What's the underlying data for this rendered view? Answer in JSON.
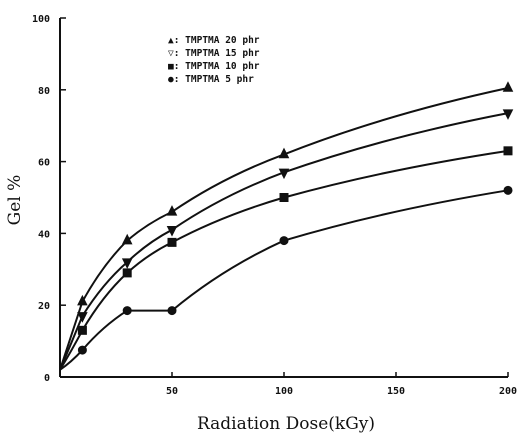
{
  "chart_data": {
    "type": "scatter",
    "title": "",
    "xlabel": "Radiation Dose(kGy)",
    "ylabel": "Gel %",
    "xlim": [
      0,
      200
    ],
    "ylim": [
      0,
      100
    ],
    "x_ticks": [
      "50",
      "100",
      "150",
      "200"
    ],
    "y_ticks": [
      "0",
      "20",
      "40",
      "60",
      "80",
      "100"
    ],
    "grid": false,
    "legend_position": "top-center",
    "series": [
      {
        "name": "TMPTMA 20 phr",
        "legend_label": "▲: TMPTMA 20 phr",
        "marker": "triangle-up",
        "x": [
          10,
          30,
          50,
          100,
          200
        ],
        "y": [
          21,
          38,
          46,
          62,
          80.5
        ]
      },
      {
        "name": "TMPTMA 15 phr",
        "legend_label": "▽: TMPTMA 15 phr",
        "marker": "triangle-down",
        "x": [
          10,
          30,
          50,
          100,
          200
        ],
        "y": [
          17,
          32,
          41,
          57,
          73.5
        ]
      },
      {
        "name": "TMPTMA 10 phr",
        "legend_label": "■: TMPTMA 10 phr",
        "marker": "square",
        "x": [
          10,
          30,
          50,
          100,
          200
        ],
        "y": [
          13,
          29,
          37.5,
          50,
          63
        ]
      },
      {
        "name": "TMPTMA 5 phr",
        "legend_label": "●: TMPTMA  5 phr",
        "marker": "circle",
        "x": [
          10,
          30,
          50,
          100,
          200
        ],
        "y": [
          7.5,
          18.5,
          18.5,
          38,
          52
        ]
      }
    ]
  }
}
